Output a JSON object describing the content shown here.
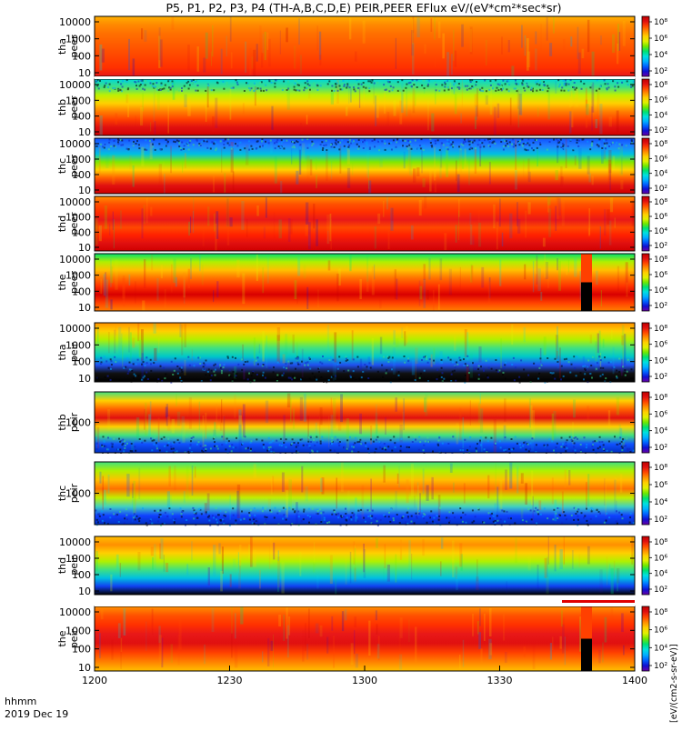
{
  "chart_data": {
    "type": "heatmap",
    "title": "P5, P1, P2, P3, P4 (TH-A,B,C,D,E) PEIR,PEER EFlux eV/(eV*cm²*sec*sr)",
    "colorbar_label": "[eV/(cm2-s-sr-eV)]",
    "x_label_line1": "hhmm",
    "x_label_line2": "2019 Dec 19",
    "x_ticks": [
      "1200",
      "1230",
      "1300",
      "1330",
      "1400"
    ],
    "x_range": [
      "12:00",
      "14:00"
    ],
    "colorbar_ticks": [
      "10²",
      "10⁴",
      "10⁶",
      "10⁸"
    ],
    "panels": [
      {
        "probe": "tha",
        "species": "peer",
        "y_ticks": [
          "10000",
          "1000",
          "100",
          "10"
        ],
        "pattern": "tha_e"
      },
      {
        "probe": "thb",
        "species": "peer",
        "y_ticks": [
          "10000",
          "1000",
          "100",
          "10"
        ],
        "pattern": "thb_e"
      },
      {
        "probe": "thc",
        "species": "peer",
        "y_ticks": [
          "10000",
          "1000",
          "100",
          "10"
        ],
        "pattern": "thc_e"
      },
      {
        "probe": "thd",
        "species": "peer",
        "y_ticks": [
          "10000",
          "1000",
          "100",
          "10"
        ],
        "pattern": "thd_e"
      },
      {
        "probe": "the",
        "species": "peer",
        "y_ticks": [
          "10000",
          "1000",
          "100",
          "10"
        ],
        "pattern": "the_e"
      },
      {
        "probe": "tha",
        "species": "peir",
        "y_ticks": [
          "10000",
          "1000",
          "100",
          "10"
        ],
        "pattern": "tha_i"
      },
      {
        "probe": "thb",
        "species": "peir",
        "y_ticks": [
          "1000"
        ],
        "pattern": "thb_i"
      },
      {
        "probe": "thc",
        "species": "peir",
        "y_ticks": [
          "1000"
        ],
        "pattern": "thc_i"
      },
      {
        "probe": "thd",
        "species": "peir",
        "y_ticks": [
          "10000",
          "1000",
          "100",
          "10"
        ],
        "pattern": "thd_i"
      },
      {
        "probe": "the",
        "species": "peir",
        "y_ticks": [
          "10000",
          "1000",
          "100",
          "10"
        ],
        "pattern": "the_i"
      }
    ],
    "colormap": [
      "#6a00a8",
      "#1010d0",
      "#0060ff",
      "#00b0ff",
      "#00e0e0",
      "#00e070",
      "#70e800",
      "#e0f000",
      "#ffd000",
      "#ff9000",
      "#ff4800",
      "#e01010",
      "#c00000"
    ],
    "gap_marker_color": "#e00000"
  }
}
